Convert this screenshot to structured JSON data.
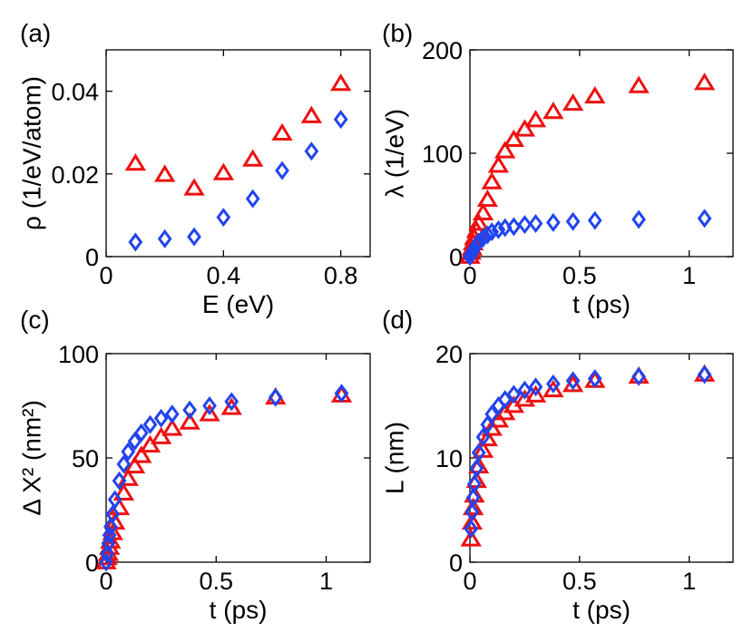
{
  "colors": {
    "series_1": "#ee1111",
    "series_2": "#2244ee"
  },
  "chart_data": [
    {
      "type": "scatter",
      "panel_label": "(a)",
      "xlabel": "E (eV)",
      "ylabel": "ρ (1/eV/atom)",
      "ylabel_html": "",
      "xlim": [
        0,
        0.9
      ],
      "ylim": [
        0,
        0.05
      ],
      "xticks": [
        0,
        0.4,
        0.8
      ],
      "xtick_labels": [
        "0",
        "0.4",
        "0.8"
      ],
      "yticks": [
        0,
        0.02,
        0.04
      ],
      "ytick_labels": [
        "0",
        "0.02",
        "0.04"
      ],
      "series": [
        {
          "marker": "triangle",
          "color": "#ee1111",
          "x": [
            0.1,
            0.2,
            0.3,
            0.4,
            0.5,
            0.6,
            0.7,
            0.8
          ],
          "y": [
            0.0225,
            0.0198,
            0.0165,
            0.0202,
            0.0235,
            0.0298,
            0.034,
            0.0418
          ]
        },
        {
          "marker": "diamond",
          "color": "#2244ee",
          "x": [
            0.1,
            0.2,
            0.3,
            0.4,
            0.5,
            0.6,
            0.7,
            0.8
          ],
          "y": [
            0.0035,
            0.0043,
            0.0048,
            0.0095,
            0.014,
            0.0208,
            0.0255,
            0.0332
          ]
        }
      ]
    },
    {
      "type": "scatter",
      "panel_label": "(b)",
      "xlabel": "t (ps)",
      "ylabel": "λ (1/eV)",
      "xlim": [
        0,
        1.2
      ],
      "ylim": [
        0,
        200
      ],
      "xticks": [
        0,
        0.5,
        1
      ],
      "xtick_labels": [
        "0",
        "0.5",
        "1"
      ],
      "yticks": [
        0,
        100,
        200
      ],
      "ytick_labels": [
        "0",
        "100",
        "200"
      ],
      "series": [
        {
          "marker": "triangle",
          "color": "#ee1111",
          "x": [
            0,
            0.005,
            0.01,
            0.015,
            0.02,
            0.03,
            0.04,
            0.06,
            0.08,
            0.1,
            0.13,
            0.16,
            0.2,
            0.25,
            0.3,
            0.38,
            0.47,
            0.57,
            0.77,
            1.07
          ],
          "y": [
            0,
            4,
            8,
            13,
            18,
            25,
            32,
            42,
            55,
            72,
            88,
            102,
            113,
            123,
            132,
            140,
            148,
            155,
            165,
            168
          ]
        },
        {
          "marker": "diamond",
          "color": "#2244ee",
          "x": [
            0,
            0.005,
            0.01,
            0.015,
            0.02,
            0.03,
            0.04,
            0.06,
            0.08,
            0.1,
            0.13,
            0.16,
            0.2,
            0.25,
            0.3,
            0.38,
            0.47,
            0.57,
            0.77,
            1.07
          ],
          "y": [
            0,
            2,
            4,
            6,
            8,
            11,
            14,
            18,
            21,
            24,
            26,
            28,
            29,
            31,
            32,
            33,
            34,
            35,
            36,
            37
          ]
        }
      ]
    },
    {
      "type": "scatter",
      "panel_label": "(c)",
      "xlabel": "t (ps)",
      "ylabel": "Δ X² (nm²)",
      "xlim": [
        0,
        1.2
      ],
      "ylim": [
        0,
        100
      ],
      "xticks": [
        0,
        0.5,
        1
      ],
      "xtick_labels": [
        "0",
        "0.5",
        "1"
      ],
      "yticks": [
        0,
        50,
        100
      ],
      "ytick_labels": [
        "0",
        "50",
        "100"
      ],
      "series": [
        {
          "marker": "triangle",
          "color": "#ee1111",
          "x": [
            0,
            0.005,
            0.01,
            0.015,
            0.02,
            0.03,
            0.04,
            0.06,
            0.08,
            0.1,
            0.13,
            0.16,
            0.2,
            0.25,
            0.3,
            0.38,
            0.47,
            0.57,
            0.77,
            1.07
          ],
          "y": [
            0,
            2,
            4,
            7,
            10,
            14,
            19,
            26,
            33,
            40,
            46,
            51,
            56,
            60,
            64,
            67,
            71,
            74,
            79,
            80
          ]
        },
        {
          "marker": "diamond",
          "color": "#2244ee",
          "x": [
            0,
            0.005,
            0.01,
            0.015,
            0.02,
            0.03,
            0.04,
            0.06,
            0.08,
            0.1,
            0.13,
            0.16,
            0.2,
            0.25,
            0.3,
            0.38,
            0.47,
            0.57,
            0.77,
            1.07
          ],
          "y": [
            0,
            4,
            9,
            13,
            17,
            23,
            30,
            39,
            47,
            53,
            58,
            62,
            66,
            69,
            71,
            73,
            75,
            77,
            79,
            81
          ]
        }
      ]
    },
    {
      "type": "scatter",
      "panel_label": "(d)",
      "xlabel": "t (ps)",
      "ylabel": "L (nm)",
      "xlim": [
        0,
        1.2
      ],
      "ylim": [
        0,
        20
      ],
      "xticks": [
        0,
        0.5,
        1
      ],
      "xtick_labels": [
        "0",
        "0.5",
        "1"
      ],
      "yticks": [
        0,
        10,
        20
      ],
      "ytick_labels": [
        "0",
        "10",
        "20"
      ],
      "series": [
        {
          "marker": "triangle",
          "color": "#ee1111",
          "x": [
            0.005,
            0.01,
            0.015,
            0.02,
            0.03,
            0.04,
            0.06,
            0.08,
            0.1,
            0.13,
            0.16,
            0.2,
            0.25,
            0.3,
            0.38,
            0.47,
            0.57,
            0.77,
            1.07
          ],
          "y": [
            2.2,
            3.8,
            5.2,
            6.4,
            7.8,
            9.2,
            10.7,
            11.8,
            12.8,
            13.6,
            14.3,
            15.0,
            15.6,
            16.0,
            16.5,
            17.0,
            17.4,
            17.8,
            18.0
          ]
        },
        {
          "marker": "diamond",
          "color": "#2244ee",
          "x": [
            0.005,
            0.01,
            0.015,
            0.02,
            0.03,
            0.04,
            0.06,
            0.08,
            0.1,
            0.13,
            0.16,
            0.2,
            0.25,
            0.3,
            0.38,
            0.47,
            0.57,
            0.77,
            1.07
          ],
          "y": [
            3.2,
            4.8,
            6.2,
            7.5,
            9.0,
            10.5,
            12.0,
            13.2,
            14.2,
            15.0,
            15.6,
            16.1,
            16.5,
            16.8,
            17.1,
            17.4,
            17.6,
            17.8,
            18.0
          ]
        }
      ]
    }
  ]
}
